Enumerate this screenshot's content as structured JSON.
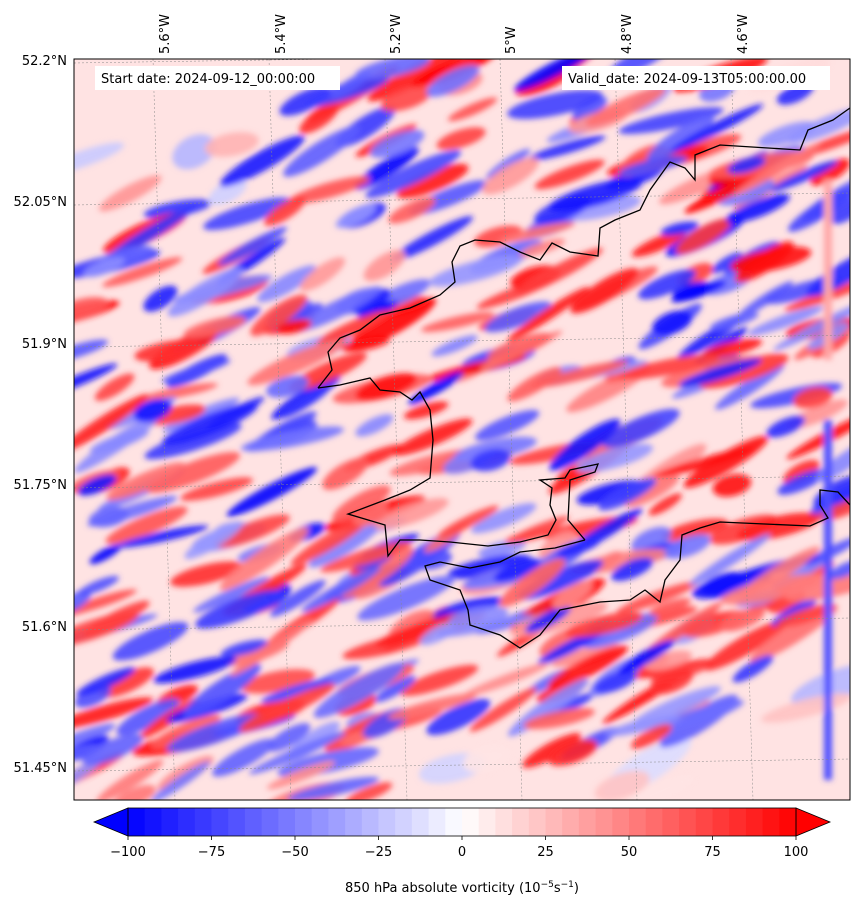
{
  "chart_data": {
    "type": "heatmap",
    "title": "",
    "start_date_label": "Start date: 2024-09-12_00:00:00",
    "valid_date_label": "Valid_date: 2024-09-13T05:00:00.00",
    "longitude_ticks": [
      "5.6°W",
      "5.4°W",
      "5.2°W",
      "5°W",
      "4.8°W",
      "4.6°W"
    ],
    "latitude_ticks": [
      "52.2°N",
      "52.05°N",
      "51.9°N",
      "51.75°N",
      "51.6°N",
      "51.45°N"
    ],
    "lon_range": [
      -5.72,
      -4.43
    ],
    "lat_range": [
      51.42,
      52.2
    ],
    "colorbar": {
      "label_main": "850 hPa absolute vorticity (10",
      "label_exp1": "−5",
      "label_mid": "s",
      "label_exp2": "−1",
      "label_end": ")",
      "min": -100,
      "max": 100,
      "ticks": [
        "−100",
        "−75",
        "−50",
        "−25",
        "0",
        "25",
        "50",
        "75",
        "100"
      ],
      "extend": "both",
      "colormap": "bwr",
      "low_color": "#0000ff",
      "mid_color": "#ffffff",
      "high_color": "#ff0000"
    },
    "grid": true,
    "coastline_color": "#000000"
  }
}
